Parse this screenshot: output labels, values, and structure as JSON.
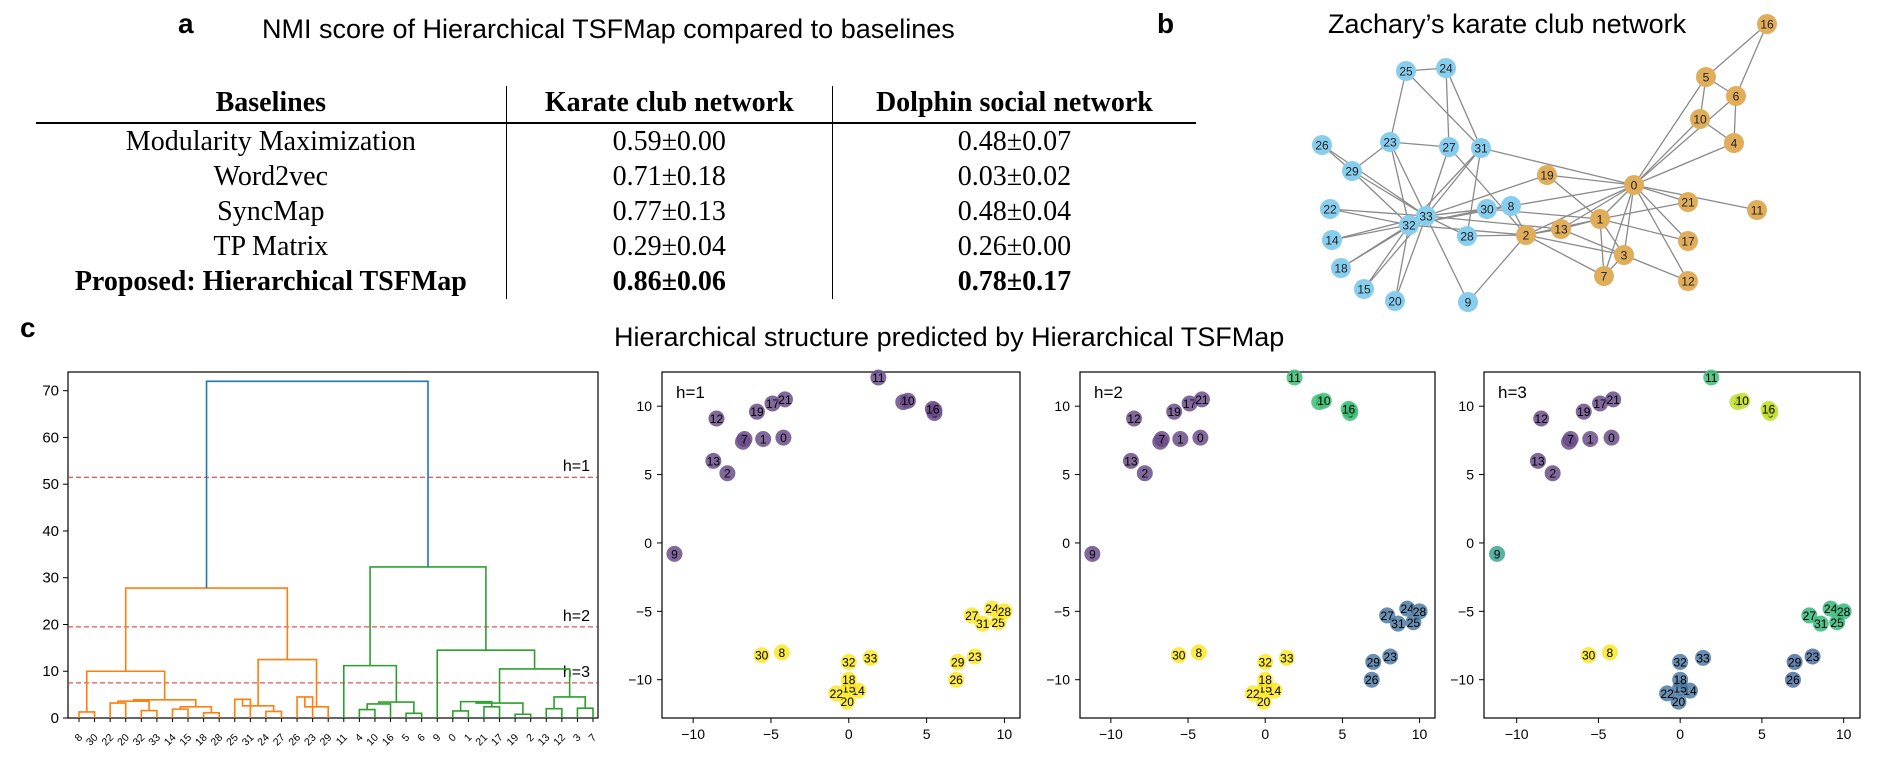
{
  "labels": {
    "a": "a",
    "b": "b",
    "c": "c"
  },
  "titles": {
    "table": "NMI score of Hierarchical TSFMap compared to baselines",
    "network": "Zachary’s karate club network",
    "hierarchy": "Hierarchical structure predicted by Hierarchical TSFMap"
  },
  "table": {
    "headers": [
      "Baselines",
      "Karate club network",
      "Dolphin social network"
    ],
    "rows": [
      {
        "name": "Modularity Maximization",
        "karate": "0.59±0.00",
        "dolphin": "0.48±0.07"
      },
      {
        "name": "Word2vec",
        "karate": "0.71±0.18",
        "dolphin": "0.03±0.02"
      },
      {
        "name": "SyncMap",
        "karate": "0.77±0.13",
        "dolphin": "0.48±0.04"
      },
      {
        "name": "TP Matrix",
        "karate": "0.29±0.04",
        "dolphin": "0.26±0.00"
      },
      {
        "name": "Proposed: Hierarchical TSFMap",
        "karate": "0.86±0.06",
        "dolphin": "0.78±0.17"
      }
    ]
  },
  "colors": {
    "blue_node": "#87cdee",
    "orange_node": "#e0ad5b",
    "edge": "#8a8a8a",
    "dendro_blue": "#1f77b4",
    "dendro_orange": "#ff7f0e",
    "dendro_green": "#2ca02c",
    "cut_line": "#d62728",
    "viridis_purple": "#6b4d8a",
    "viridis_green": "#3dbf75",
    "viridis_yellow": "#fde725",
    "viridis_blue": "#4d7aa5",
    "viridis_teal": "#39a490",
    "viridis_lime": "#c1df2e"
  },
  "chart_data": [
    {
      "type": "network",
      "title": "Zachary’s karate club network",
      "communities": {
        "blue": [
          "8",
          "9",
          "14",
          "15",
          "18",
          "20",
          "22",
          "23",
          "24",
          "25",
          "26",
          "27",
          "28",
          "29",
          "30",
          "31",
          "32",
          "33"
        ],
        "orange": [
          "0",
          "1",
          "2",
          "3",
          "4",
          "5",
          "6",
          "7",
          "10",
          "11",
          "12",
          "13",
          "16",
          "17",
          "19",
          "21"
        ]
      },
      "edges": [
        [
          "0",
          "1"
        ],
        [
          "0",
          "2"
        ],
        [
          "0",
          "3"
        ],
        [
          "0",
          "4"
        ],
        [
          "0",
          "5"
        ],
        [
          "0",
          "6"
        ],
        [
          "0",
          "7"
        ],
        [
          "0",
          "8"
        ],
        [
          "0",
          "10"
        ],
        [
          "0",
          "11"
        ],
        [
          "0",
          "12"
        ],
        [
          "0",
          "13"
        ],
        [
          "0",
          "17"
        ],
        [
          "0",
          "19"
        ],
        [
          "0",
          "21"
        ],
        [
          "0",
          "31"
        ],
        [
          "1",
          "2"
        ],
        [
          "1",
          "3"
        ],
        [
          "1",
          "7"
        ],
        [
          "1",
          "13"
        ],
        [
          "1",
          "17"
        ],
        [
          "1",
          "19"
        ],
        [
          "1",
          "21"
        ],
        [
          "1",
          "30"
        ],
        [
          "2",
          "3"
        ],
        [
          "2",
          "7"
        ],
        [
          "2",
          "8"
        ],
        [
          "2",
          "9"
        ],
        [
          "2",
          "13"
        ],
        [
          "2",
          "27"
        ],
        [
          "2",
          "28"
        ],
        [
          "2",
          "32"
        ],
        [
          "3",
          "7"
        ],
        [
          "3",
          "12"
        ],
        [
          "3",
          "13"
        ],
        [
          "4",
          "6"
        ],
        [
          "4",
          "10"
        ],
        [
          "5",
          "6"
        ],
        [
          "5",
          "10"
        ],
        [
          "5",
          "16"
        ],
        [
          "6",
          "16"
        ],
        [
          "8",
          "30"
        ],
        [
          "8",
          "32"
        ],
        [
          "8",
          "33"
        ],
        [
          "9",
          "33"
        ],
        [
          "13",
          "33"
        ],
        [
          "14",
          "32"
        ],
        [
          "14",
          "33"
        ],
        [
          "15",
          "32"
        ],
        [
          "15",
          "33"
        ],
        [
          "18",
          "32"
        ],
        [
          "18",
          "33"
        ],
        [
          "19",
          "33"
        ],
        [
          "20",
          "32"
        ],
        [
          "20",
          "33"
        ],
        [
          "22",
          "32"
        ],
        [
          "22",
          "33"
        ],
        [
          "23",
          "25"
        ],
        [
          "23",
          "27"
        ],
        [
          "23",
          "29"
        ],
        [
          "23",
          "32"
        ],
        [
          "23",
          "33"
        ],
        [
          "24",
          "25"
        ],
        [
          "24",
          "27"
        ],
        [
          "24",
          "31"
        ],
        [
          "25",
          "31"
        ],
        [
          "26",
          "29"
        ],
        [
          "26",
          "33"
        ],
        [
          "27",
          "33"
        ],
        [
          "28",
          "31"
        ],
        [
          "28",
          "33"
        ],
        [
          "29",
          "32"
        ],
        [
          "29",
          "33"
        ],
        [
          "30",
          "32"
        ],
        [
          "30",
          "33"
        ],
        [
          "31",
          "32"
        ],
        [
          "31",
          "33"
        ],
        [
          "32",
          "33"
        ]
      ]
    },
    {
      "type": "dendrogram",
      "yticks": [
        0,
        10,
        20,
        30,
        40,
        50,
        60,
        70
      ],
      "ylim": [
        0,
        74
      ],
      "leaf_order": [
        "8",
        "30",
        "22",
        "20",
        "32",
        "33",
        "14",
        "15",
        "18",
        "28",
        "25",
        "31",
        "24",
        "27",
        "26",
        "23",
        "29",
        "11",
        "4",
        "10",
        "16",
        "5",
        "6",
        "9",
        "0",
        "1",
        "21",
        "17",
        "19",
        "2",
        "13",
        "12",
        "3",
        "7"
      ],
      "cut_lines": [
        {
          "label": "h=1",
          "y": 51.5
        },
        {
          "label": "h=2",
          "y": 19.5
        },
        {
          "label": "h=3",
          "y": 7.5
        }
      ],
      "merges": {
        "root": 72,
        "orange_top": 27.8,
        "green_top": 32.3,
        "orange_left": 10,
        "orange_right": 12.5,
        "green_left": 11.2,
        "green_right": 14.5
      }
    },
    {
      "type": "scatter",
      "title": "h=1",
      "xticks": [
        -10,
        -5,
        0,
        5,
        10
      ],
      "yticks": [
        -10,
        -5,
        0,
        5,
        10
      ],
      "xlim": [
        -12,
        11
      ],
      "ylim": [
        -12.8,
        12.5
      ],
      "groups": {
        "purple": [
          "0",
          "1",
          "2",
          "3",
          "4",
          "5",
          "6",
          "7",
          "9",
          "10",
          "11",
          "12",
          "13",
          "16",
          "17",
          "19",
          "21"
        ],
        "yellow": [
          "8",
          "14",
          "15",
          "18",
          "20",
          "22",
          "23",
          "24",
          "25",
          "26",
          "27",
          "28",
          "29",
          "30",
          "31",
          "32",
          "33"
        ]
      }
    },
    {
      "type": "scatter",
      "title": "h=2",
      "xticks": [
        -10,
        -5,
        0,
        5,
        10
      ],
      "yticks": [
        -10,
        -5,
        0,
        5,
        10
      ],
      "groups": {
        "purple": [
          "0",
          "1",
          "2",
          "3",
          "7",
          "9",
          "12",
          "13",
          "17",
          "19",
          "21"
        ],
        "green": [
          "4",
          "5",
          "6",
          "10",
          "11",
          "16"
        ],
        "blue": [
          "23",
          "24",
          "25",
          "26",
          "27",
          "28",
          "29",
          "31"
        ],
        "yellow": [
          "8",
          "14",
          "15",
          "18",
          "20",
          "22",
          "30",
          "32",
          "33"
        ]
      }
    },
    {
      "type": "scatter",
      "title": "h=3",
      "xticks": [
        -10,
        -5,
        0,
        5,
        10
      ],
      "yticks": [
        -10,
        -5,
        0,
        5,
        10
      ],
      "groups": {
        "purple": [
          "0",
          "1",
          "2",
          "3",
          "7",
          "12",
          "13",
          "17",
          "19",
          "21"
        ],
        "teal": [
          "9"
        ],
        "green": [
          "11"
        ],
        "lime": [
          "4",
          "5",
          "6",
          "10",
          "16"
        ],
        "blue": [
          "14",
          "15",
          "18",
          "20",
          "22",
          "32",
          "33"
        ],
        "tealgreen": [
          "24",
          "25",
          "27",
          "28",
          "31"
        ],
        "slate": [
          "23",
          "26",
          "29"
        ],
        "yellow": [
          "8",
          "30"
        ]
      }
    }
  ],
  "scatter_points": [
    {
      "id": "0",
      "x": -4.2,
      "y": 7.7
    },
    {
      "id": "1",
      "x": -5.5,
      "y": 7.6
    },
    {
      "id": "2",
      "x": -7.8,
      "y": 5.1
    },
    {
      "id": "3",
      "x": -6.8,
      "y": 7.4
    },
    {
      "id": "4",
      "x": 3.5,
      "y": 10.3
    },
    {
      "id": "5",
      "x": 5.5,
      "y": 9.7
    },
    {
      "id": "6",
      "x": 5.5,
      "y": 9.5
    },
    {
      "id": "7",
      "x": -6.7,
      "y": 7.6
    },
    {
      "id": "8",
      "x": -4.3,
      "y": -8.0
    },
    {
      "id": "9",
      "x": -11.2,
      "y": -0.8
    },
    {
      "id": "10",
      "x": 3.8,
      "y": 10.4
    },
    {
      "id": "11",
      "x": 1.9,
      "y": 12.1
    },
    {
      "id": "12",
      "x": -8.5,
      "y": 9.1
    },
    {
      "id": "13",
      "x": -8.7,
      "y": 6.0
    },
    {
      "id": "14",
      "x": 0.6,
      "y": -10.8
    },
    {
      "id": "15",
      "x": 0.0,
      "y": -10.6
    },
    {
      "id": "16",
      "x": 5.4,
      "y": 9.8
    },
    {
      "id": "17",
      "x": -4.9,
      "y": 10.2
    },
    {
      "id": "18",
      "x": 0.0,
      "y": -10.0
    },
    {
      "id": "19",
      "x": -5.9,
      "y": 9.6
    },
    {
      "id": "20",
      "x": -0.1,
      "y": -11.6
    },
    {
      "id": "21",
      "x": -4.1,
      "y": 10.5
    },
    {
      "id": "22",
      "x": -0.8,
      "y": -11.0
    },
    {
      "id": "23",
      "x": 8.1,
      "y": -8.3
    },
    {
      "id": "24",
      "x": 9.2,
      "y": -4.8
    },
    {
      "id": "25",
      "x": 9.6,
      "y": -5.8
    },
    {
      "id": "26",
      "x": 6.9,
      "y": -10.0
    },
    {
      "id": "27",
      "x": 7.9,
      "y": -5.3
    },
    {
      "id": "28",
      "x": 10.0,
      "y": -5.0
    },
    {
      "id": "29",
      "x": 7.0,
      "y": -8.7
    },
    {
      "id": "30",
      "x": -5.6,
      "y": -8.2
    },
    {
      "id": "31",
      "x": 8.6,
      "y": -5.9
    },
    {
      "id": "32",
      "x": 0.0,
      "y": -8.7
    },
    {
      "id": "33",
      "x": 1.4,
      "y": -8.4
    }
  ]
}
